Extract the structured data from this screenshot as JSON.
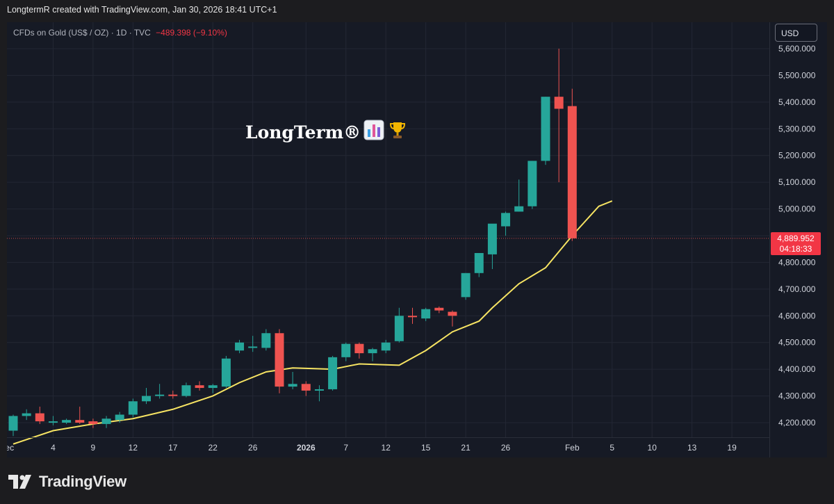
{
  "header": {
    "credit": "LongtermR created with TradingView.com, Jan 30, 2026 18:41 UTC+1"
  },
  "legend": {
    "symbol": "CFDs on Gold (US$ / OZ) · 1D · TVC",
    "change": "−489.398 (−9.10%)"
  },
  "currency_button": "USD",
  "price_tag": {
    "price": "4,889.952",
    "countdown": "04:18:33"
  },
  "annotation": {
    "text": "LongTerm®",
    "icons": [
      "bar-chart-emoji-icon",
      "trophy-emoji-icon"
    ]
  },
  "footer": {
    "brand": "TradingView",
    "logo_icon": "tradingview-logo-icon"
  },
  "colors": {
    "up": "#26a69a",
    "down": "#ef5350",
    "ma": "#f7e463",
    "background": "#161a25",
    "grid": "#232734",
    "price_line": "#ef5350"
  },
  "chart_data": {
    "type": "candlestick",
    "instrument": "CFDs on Gold (US$ / OZ)",
    "interval": "1D",
    "ylim": [
      4150,
      5640
    ],
    "y_ticks": [
      4200,
      4300,
      4400,
      4500,
      4600,
      4700,
      4800,
      5000,
      5100,
      5200,
      5300,
      5400,
      5500,
      5600
    ],
    "y_tick_labels": [
      "4,200.000",
      "4,300.000",
      "4,400.000",
      "4,500.000",
      "4,600.000",
      "4,700.000",
      "4,800.000",
      "5,000.000",
      "5,100.000",
      "5,200.000",
      "5,300.000",
      "5,400.000",
      "5,500.000",
      "5,600.000"
    ],
    "last_price": 4889.952,
    "x_labels": [
      {
        "label": "Dec",
        "index": -0.5
      },
      {
        "label": "4",
        "index": 3
      },
      {
        "label": "9",
        "index": 6
      },
      {
        "label": "12",
        "index": 9
      },
      {
        "label": "17",
        "index": 12
      },
      {
        "label": "22",
        "index": 15
      },
      {
        "label": "26",
        "index": 18
      },
      {
        "label": "2026",
        "index": 22,
        "bold": true
      },
      {
        "label": "7",
        "index": 25
      },
      {
        "label": "12",
        "index": 28
      },
      {
        "label": "15",
        "index": 31
      },
      {
        "label": "21",
        "index": 34
      },
      {
        "label": "26",
        "index": 37
      },
      {
        "label": "Feb",
        "index": 42
      },
      {
        "label": "5",
        "index": 45
      },
      {
        "label": "10",
        "index": 48
      },
      {
        "label": "13",
        "index": 51
      },
      {
        "label": "19",
        "index": 54
      }
    ],
    "candles": [
      {
        "o": 4170,
        "h": 4230,
        "l": 4150,
        "c": 4225
      },
      {
        "o": 4225,
        "h": 4250,
        "l": 4210,
        "c": 4235
      },
      {
        "o": 4235,
        "h": 4260,
        "l": 4195,
        "c": 4205
      },
      {
        "o": 4205,
        "h": 4225,
        "l": 4190,
        "c": 4205
      },
      {
        "o": 4200,
        "h": 4215,
        "l": 4195,
        "c": 4210
      },
      {
        "o": 4210,
        "h": 4260,
        "l": 4195,
        "c": 4200
      },
      {
        "o": 4205,
        "h": 4215,
        "l": 4180,
        "c": 4195
      },
      {
        "o": 4195,
        "h": 4225,
        "l": 4180,
        "c": 4215
      },
      {
        "o": 4210,
        "h": 4240,
        "l": 4200,
        "c": 4230
      },
      {
        "o": 4230,
        "h": 4290,
        "l": 4220,
        "c": 4280
      },
      {
        "o": 4280,
        "h": 4330,
        "l": 4270,
        "c": 4300
      },
      {
        "o": 4300,
        "h": 4345,
        "l": 4290,
        "c": 4305
      },
      {
        "o": 4305,
        "h": 4320,
        "l": 4290,
        "c": 4300
      },
      {
        "o": 4300,
        "h": 4350,
        "l": 4295,
        "c": 4340
      },
      {
        "o": 4340,
        "h": 4355,
        "l": 4320,
        "c": 4330
      },
      {
        "o": 4330,
        "h": 4345,
        "l": 4310,
        "c": 4340
      },
      {
        "o": 4335,
        "h": 4450,
        "l": 4330,
        "c": 4440
      },
      {
        "o": 4470,
        "h": 4510,
        "l": 4460,
        "c": 4500
      },
      {
        "o": 4480,
        "h": 4525,
        "l": 4465,
        "c": 4485
      },
      {
        "o": 4480,
        "h": 4550,
        "l": 4470,
        "c": 4535
      },
      {
        "o": 4535,
        "h": 4550,
        "l": 4310,
        "c": 4335
      },
      {
        "o": 4335,
        "h": 4390,
        "l": 4325,
        "c": 4345
      },
      {
        "o": 4345,
        "h": 4355,
        "l": 4300,
        "c": 4320
      },
      {
        "o": 4320,
        "h": 4340,
        "l": 4280,
        "c": 4325
      },
      {
        "o": 4325,
        "h": 4450,
        "l": 4320,
        "c": 4445
      },
      {
        "o": 4445,
        "h": 4500,
        "l": 4430,
        "c": 4495
      },
      {
        "o": 4495,
        "h": 4500,
        "l": 4440,
        "c": 4460
      },
      {
        "o": 4460,
        "h": 4480,
        "l": 4430,
        "c": 4475
      },
      {
        "o": 4470,
        "h": 4510,
        "l": 4460,
        "c": 4500
      },
      {
        "o": 4505,
        "h": 4630,
        "l": 4500,
        "c": 4600
      },
      {
        "o": 4600,
        "h": 4630,
        "l": 4570,
        "c": 4595
      },
      {
        "o": 4590,
        "h": 4630,
        "l": 4580,
        "c": 4625
      },
      {
        "o": 4630,
        "h": 4635,
        "l": 4610,
        "c": 4620
      },
      {
        "o": 4615,
        "h": 4620,
        "l": 4560,
        "c": 4600
      },
      {
        "o": 4670,
        "h": 4760,
        "l": 4660,
        "c": 4760
      },
      {
        "o": 4760,
        "h": 4830,
        "l": 4745,
        "c": 4835
      },
      {
        "o": 4830,
        "h": 4940,
        "l": 4775,
        "c": 4945
      },
      {
        "o": 4935,
        "h": 4990,
        "l": 4900,
        "c": 4985
      },
      {
        "o": 4990,
        "h": 5110,
        "l": 4990,
        "c": 5010
      },
      {
        "o": 5010,
        "h": 5180,
        "l": 5000,
        "c": 5180
      },
      {
        "o": 5180,
        "h": 5420,
        "l": 5165,
        "c": 5420
      },
      {
        "o": 5420,
        "h": 5600,
        "l": 5100,
        "c": 5375
      },
      {
        "o": 5385,
        "h": 5450,
        "l": 4880,
        "c": 4890
      }
    ],
    "ma": [
      {
        "i": 0,
        "v": 4120
      },
      {
        "i": 3,
        "v": 4170
      },
      {
        "i": 6,
        "v": 4195
      },
      {
        "i": 9,
        "v": 4215
      },
      {
        "i": 12,
        "v": 4250
      },
      {
        "i": 15,
        "v": 4300
      },
      {
        "i": 17,
        "v": 4350
      },
      {
        "i": 19,
        "v": 4390
      },
      {
        "i": 21,
        "v": 4405
      },
      {
        "i": 24,
        "v": 4400
      },
      {
        "i": 26,
        "v": 4420
      },
      {
        "i": 29,
        "v": 4415
      },
      {
        "i": 31,
        "v": 4470
      },
      {
        "i": 33,
        "v": 4540
      },
      {
        "i": 35,
        "v": 4580
      },
      {
        "i": 36,
        "v": 4630
      },
      {
        "i": 38,
        "v": 4720
      },
      {
        "i": 40,
        "v": 4780
      },
      {
        "i": 42,
        "v": 4900
      },
      {
        "i": 44,
        "v": 5010
      },
      {
        "i": 45,
        "v": 5030
      }
    ]
  }
}
